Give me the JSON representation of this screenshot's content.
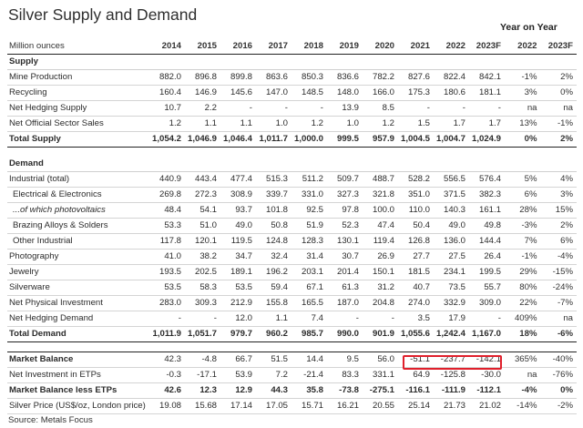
{
  "title": "Silver Supply and Demand",
  "yoy_label": "Year on Year",
  "unit_label": "Million ounces",
  "years": [
    "2014",
    "2015",
    "2016",
    "2017",
    "2018",
    "2019",
    "2020",
    "2021",
    "2022",
    "2023F"
  ],
  "yoy_years": [
    "2022",
    "2023F"
  ],
  "rows": [
    {
      "label": "Supply",
      "kind": "section",
      "values": [
        "",
        "",
        "",
        "",
        "",
        "",
        "",
        "",
        "",
        ""
      ],
      "yoy": [
        "",
        ""
      ]
    },
    {
      "label": "Mine Production",
      "kind": "normal",
      "values": [
        "882.0",
        "896.8",
        "899.8",
        "863.6",
        "850.3",
        "836.6",
        "782.2",
        "827.6",
        "822.4",
        "842.1"
      ],
      "yoy": [
        "-1%",
        "2%"
      ]
    },
    {
      "label": "Recycling",
      "kind": "normal",
      "values": [
        "160.4",
        "146.9",
        "145.6",
        "147.0",
        "148.5",
        "148.0",
        "166.0",
        "175.3",
        "180.6",
        "181.1"
      ],
      "yoy": [
        "3%",
        "0%"
      ]
    },
    {
      "label": "Net Hedging Supply",
      "kind": "normal",
      "values": [
        "10.7",
        "2.2",
        "-",
        "-",
        "-",
        "13.9",
        "8.5",
        "-",
        "-",
        "-"
      ],
      "yoy": [
        "na",
        "na"
      ]
    },
    {
      "label": "Net Official Sector Sales",
      "kind": "normal",
      "values": [
        "1.2",
        "1.1",
        "1.1",
        "1.0",
        "1.2",
        "1.0",
        "1.2",
        "1.5",
        "1.7",
        "1.7"
      ],
      "yoy": [
        "13%",
        "-1%"
      ]
    },
    {
      "label": "Total Supply",
      "kind": "total",
      "values": [
        "1,054.2",
        "1,046.9",
        "1,046.4",
        "1,011.7",
        "1,000.0",
        "999.5",
        "957.9",
        "1,004.5",
        "1,004.7",
        "1,024.9"
      ],
      "yoy": [
        "0%",
        "2%"
      ]
    },
    {
      "label": "",
      "kind": "gap",
      "values": [
        "",
        "",
        "",
        "",
        "",
        "",
        "",
        "",
        "",
        ""
      ],
      "yoy": [
        "",
        ""
      ]
    },
    {
      "label": "Demand",
      "kind": "section",
      "values": [
        "",
        "",
        "",
        "",
        "",
        "",
        "",
        "",
        "",
        ""
      ],
      "yoy": [
        "",
        ""
      ]
    },
    {
      "label": "Industrial (total)",
      "kind": "normal",
      "values": [
        "440.9",
        "443.4",
        "477.4",
        "515.3",
        "511.2",
        "509.7",
        "488.7",
        "528.2",
        "556.5",
        "576.4"
      ],
      "yoy": [
        "5%",
        "4%"
      ]
    },
    {
      "label": "Electrical & Electronics",
      "kind": "sub",
      "values": [
        "269.8",
        "272.3",
        "308.9",
        "339.7",
        "331.0",
        "327.3",
        "321.8",
        "351.0",
        "371.5",
        "382.3"
      ],
      "yoy": [
        "6%",
        "3%"
      ]
    },
    {
      "label": "...of which photovoltaics",
      "kind": "subital",
      "values": [
        "48.4",
        "54.1",
        "93.7",
        "101.8",
        "92.5",
        "97.8",
        "100.0",
        "110.0",
        "140.3",
        "161.1"
      ],
      "yoy": [
        "28%",
        "15%"
      ]
    },
    {
      "label": "Brazing Alloys & Solders",
      "kind": "sub",
      "values": [
        "53.3",
        "51.0",
        "49.0",
        "50.8",
        "51.9",
        "52.3",
        "47.4",
        "50.4",
        "49.0",
        "49.8"
      ],
      "yoy": [
        "-3%",
        "2%"
      ]
    },
    {
      "label": "Other Industrial",
      "kind": "sub",
      "values": [
        "117.8",
        "120.1",
        "119.5",
        "124.8",
        "128.3",
        "130.1",
        "119.4",
        "126.8",
        "136.0",
        "144.4"
      ],
      "yoy": [
        "7%",
        "6%"
      ]
    },
    {
      "label": "Photography",
      "kind": "normal",
      "values": [
        "41.0",
        "38.2",
        "34.7",
        "32.4",
        "31.4",
        "30.7",
        "26.9",
        "27.7",
        "27.5",
        "26.4"
      ],
      "yoy": [
        "-1%",
        "-4%"
      ]
    },
    {
      "label": "Jewelry",
      "kind": "normal",
      "values": [
        "193.5",
        "202.5",
        "189.1",
        "196.2",
        "203.1",
        "201.4",
        "150.1",
        "181.5",
        "234.1",
        "199.5"
      ],
      "yoy": [
        "29%",
        "-15%"
      ]
    },
    {
      "label": "Silverware",
      "kind": "normal",
      "values": [
        "53.5",
        "58.3",
        "53.5",
        "59.4",
        "67.1",
        "61.3",
        "31.2",
        "40.7",
        "73.5",
        "55.7"
      ],
      "yoy": [
        "80%",
        "-24%"
      ]
    },
    {
      "label": "Net Physical Investment",
      "kind": "normal",
      "values": [
        "283.0",
        "309.3",
        "212.9",
        "155.8",
        "165.5",
        "187.0",
        "204.8",
        "274.0",
        "332.9",
        "309.0"
      ],
      "yoy": [
        "22%",
        "-7%"
      ]
    },
    {
      "label": "Net Hedging Demand",
      "kind": "normal",
      "values": [
        "-",
        "-",
        "12.0",
        "1.1",
        "7.4",
        "-",
        "-",
        "3.5",
        "17.9",
        "-"
      ],
      "yoy": [
        "409%",
        "na"
      ]
    },
    {
      "label": "Total Demand",
      "kind": "total",
      "values": [
        "1,011.9",
        "1,051.7",
        "979.7",
        "960.2",
        "985.7",
        "990.0",
        "901.9",
        "1,055.6",
        "1,242.4",
        "1,167.0"
      ],
      "yoy": [
        "18%",
        "-6%"
      ]
    },
    {
      "label": "",
      "kind": "gapb",
      "values": [
        "",
        "",
        "",
        "",
        "",
        "",
        "",
        "",
        "",
        ""
      ],
      "yoy": [
        "",
        ""
      ]
    },
    {
      "label": "Market Balance",
      "kind": "bold-label",
      "values": [
        "42.3",
        "-4.8",
        "66.7",
        "51.5",
        "14.4",
        "9.5",
        "56.0",
        "-51.1",
        "-237.7",
        "-142.1"
      ],
      "yoy": [
        "365%",
        "-40%"
      ]
    },
    {
      "label": "Net Investment in ETPs",
      "kind": "normal",
      "values": [
        "-0.3",
        "-17.1",
        "53.9",
        "7.2",
        "-21.4",
        "83.3",
        "331.1",
        "64.9",
        "-125.8",
        "-30.0"
      ],
      "yoy": [
        "na",
        "-76%"
      ]
    },
    {
      "label": "Market Balance less ETPs",
      "kind": "bold",
      "values": [
        "42.6",
        "12.3",
        "12.9",
        "44.3",
        "35.8",
        "-73.8",
        "-275.1",
        "-116.1",
        "-111.9",
        "-112.1"
      ],
      "yoy": [
        "-4%",
        "0%"
      ]
    },
    {
      "label": "Silver Price (US$/oz, London price)",
      "kind": "normal",
      "values": [
        "19.08",
        "15.68",
        "17.14",
        "17.05",
        "15.71",
        "16.21",
        "20.55",
        "25.14",
        "21.73",
        "21.02"
      ],
      "yoy": [
        "-14%",
        "-2%"
      ]
    }
  ],
  "source": "Source: Metals Focus",
  "highlight_color": "#e0202c"
}
